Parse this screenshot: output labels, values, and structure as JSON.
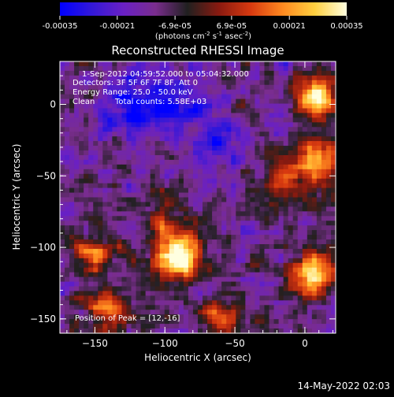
{
  "chart_data": {
    "type": "heatmap",
    "title": "Reconstructed RHESSI Image",
    "xlabel": "Heliocentric X (arcsec)",
    "ylabel": "Heliocentric Y (arcsec)",
    "xlim": [
      -175,
      22
    ],
    "ylim": [
      -160,
      30
    ],
    "xticks": [
      -150,
      -100,
      -50,
      0
    ],
    "yticks": [
      -150,
      -100,
      -50,
      0
    ],
    "colorbar": {
      "range": [
        -0.00035,
        0.00035
      ],
      "tick_values": [
        -0.00035,
        -0.00021,
        -6.9e-05,
        6.9e-05,
        0.00021,
        0.00035
      ],
      "tick_labels": [
        "-0.00035",
        "-0.00021",
        "-6.9e-05",
        "6.9e-05",
        "0.00021",
        "0.00035"
      ],
      "unit_parts": [
        "(photons cm",
        "-2",
        " s",
        "-1",
        " asec",
        "-2",
        ")"
      ],
      "colors": [
        "#0000ff",
        "#3318d8",
        "#6a20c4",
        "#7a2d8e",
        "#202020",
        "#8a1a10",
        "#d83a10",
        "#ff8a20",
        "#ffd040",
        "#ffffe0"
      ]
    },
    "annotations": [
      "1-Sep-2012 04:59:52.000 to 05:04:32.000",
      "Detectors: 3F 5F 6F 7F 8F, Att 0",
      "Energy Range: 25.0 - 50.0 keV",
      "Clean",
      "Total counts: 5.58E+03"
    ],
    "peak_label": "Position of Peak = [12,-16]",
    "peak_position": [
      12,
      -16
    ],
    "bright_sources": [
      {
        "x": -90,
        "y": -107,
        "relative_intensity": 1.0
      },
      {
        "x": 5,
        "y": -118,
        "relative_intensity": 0.85
      },
      {
        "x": 10,
        "y": 5,
        "relative_intensity": 0.8
      },
      {
        "x": 12,
        "y": -40,
        "relative_intensity": 0.6
      },
      {
        "x": -15,
        "y": -55,
        "relative_intensity": 0.45
      },
      {
        "x": -140,
        "y": -145,
        "relative_intensity": 0.55
      },
      {
        "x": -150,
        "y": -105,
        "relative_intensity": 0.45
      },
      {
        "x": -100,
        "y": -80,
        "relative_intensity": 0.35
      },
      {
        "x": -60,
        "y": -150,
        "relative_intensity": 0.4
      }
    ],
    "dark_regions": [
      {
        "x": -95,
        "y": 5
      },
      {
        "x": -125,
        "y": -5
      },
      {
        "x": -60,
        "y": -25
      }
    ]
  },
  "footer": {
    "date": "14-May-2022 02:03"
  }
}
